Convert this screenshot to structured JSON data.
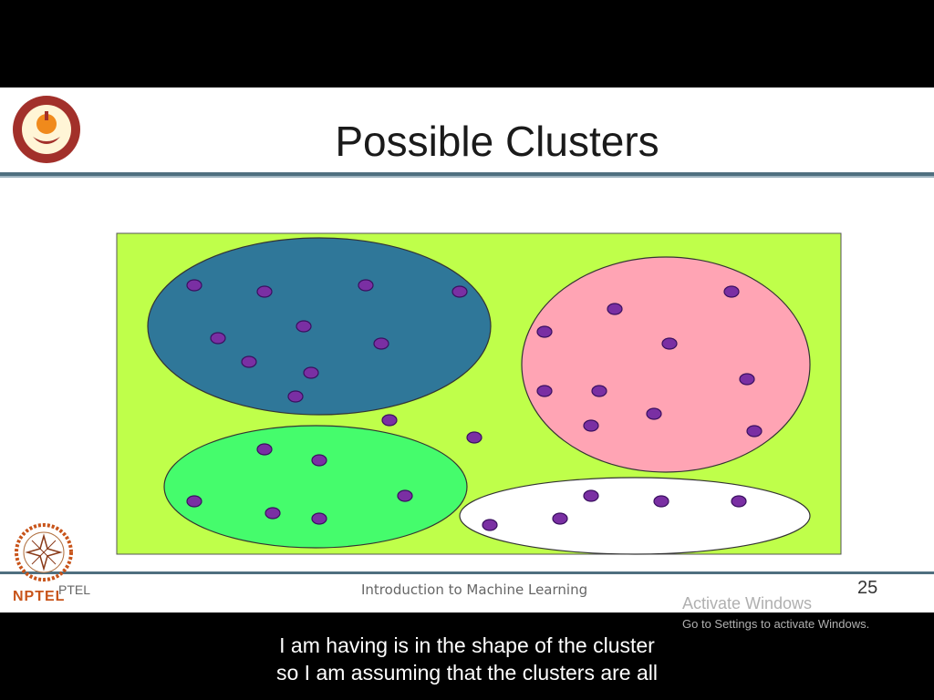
{
  "slide": {
    "title": "Possible Clusters",
    "footer": "Introduction to Machine Learning",
    "page_number": "25",
    "logo_top_left": "iit-madras-logo",
    "logo_bottom_left": "nptel-logo",
    "nptel_label": "NPTEL",
    "nptel_ghost_label": "PTEL"
  },
  "diagram": {
    "background_color": "#bfff4a",
    "point_color": "#7a2fa3",
    "clusters": [
      {
        "name": "blue",
        "color": "#2f7799"
      },
      {
        "name": "pink",
        "color": "#ffa4b4"
      },
      {
        "name": "green",
        "color": "#45fc6c"
      },
      {
        "name": "white",
        "color": "#ffffff"
      }
    ]
  },
  "watermark": {
    "title": "Activate Windows",
    "subtitle": "Go to Settings to activate Windows."
  },
  "subtitles": {
    "line1": "I am having is in the shape of the cluster",
    "line2": "so I am assuming that the clusters are all"
  }
}
